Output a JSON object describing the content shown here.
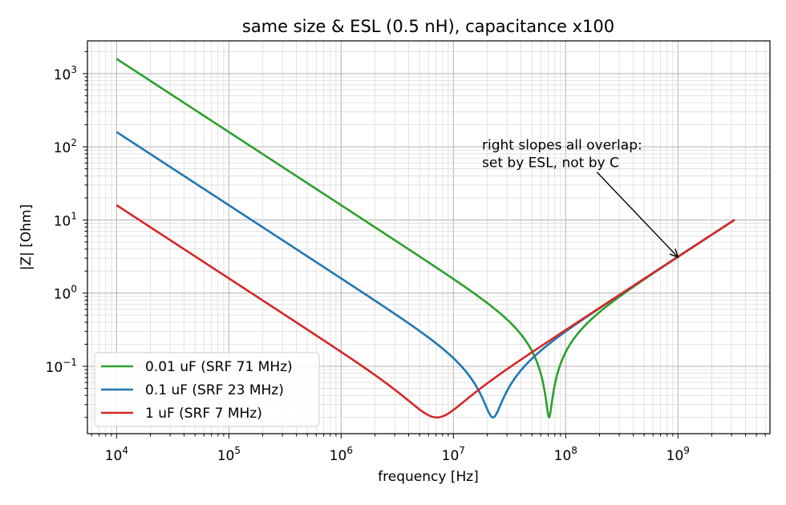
{
  "chart_data": {
    "type": "line",
    "title": "same size & ESL (0.5 nH), capacitance x100",
    "xlabel": "frequency [Hz]",
    "ylabel": "|Z| [Ohm]",
    "x_scale": "log",
    "y_scale": "log",
    "xlim": [
      5500.0,
      6600000000.0
    ],
    "ylim": [
      0.012,
      2800
    ],
    "grid": "major and minor",
    "legend_position": "lower-left",
    "x_ticks": [
      {
        "value": 10000.0,
        "base": "10",
        "exp": "4"
      },
      {
        "value": 100000.0,
        "base": "10",
        "exp": "5"
      },
      {
        "value": 1000000.0,
        "base": "10",
        "exp": "6"
      },
      {
        "value": 10000000.0,
        "base": "10",
        "exp": "7"
      },
      {
        "value": 100000000.0,
        "base": "10",
        "exp": "8"
      },
      {
        "value": 1000000000.0,
        "base": "10",
        "exp": "9"
      }
    ],
    "y_ticks": [
      {
        "value": 0.1,
        "base": "10",
        "exp": "−1"
      },
      {
        "value": 1,
        "base": "10",
        "exp": "0"
      },
      {
        "value": 10,
        "base": "10",
        "exp": "1"
      },
      {
        "value": 100,
        "base": "10",
        "exp": "2"
      },
      {
        "value": 1000,
        "base": "10",
        "exp": "3"
      }
    ],
    "series": [
      {
        "name": "0.01 uF (SRF 71 MHz)",
        "color": "#2ca02c",
        "capacitance_F": 1e-08,
        "esl_H": 5e-10,
        "esr_Ohm": 0.02,
        "f_start": 10000.0,
        "f_stop": 3200000000.0
      },
      {
        "name": "0.1 uF (SRF 23 MHz)",
        "color": "#1f77b4",
        "capacitance_F": 1e-07,
        "esl_H": 5e-10,
        "esr_Ohm": 0.02,
        "f_start": 10000.0,
        "f_stop": 3200000000.0
      },
      {
        "name": "1 uF (SRF 7 MHz)",
        "color": "#d62728",
        "capacitance_F": 1e-06,
        "esl_H": 5e-10,
        "esr_Ohm": 0.02,
        "f_start": 10000.0,
        "f_stop": 3200000000.0
      }
    ],
    "annotation": {
      "lines": [
        "right slopes all overlap:",
        "set by ESL, not by C"
      ],
      "text_x": 18000000.0,
      "text_y": 110,
      "arrow_from_x": 190000000.0,
      "arrow_from_y": 45,
      "arrow_to_x": 1000000000.0,
      "arrow_to_y": 3.1
    }
  }
}
